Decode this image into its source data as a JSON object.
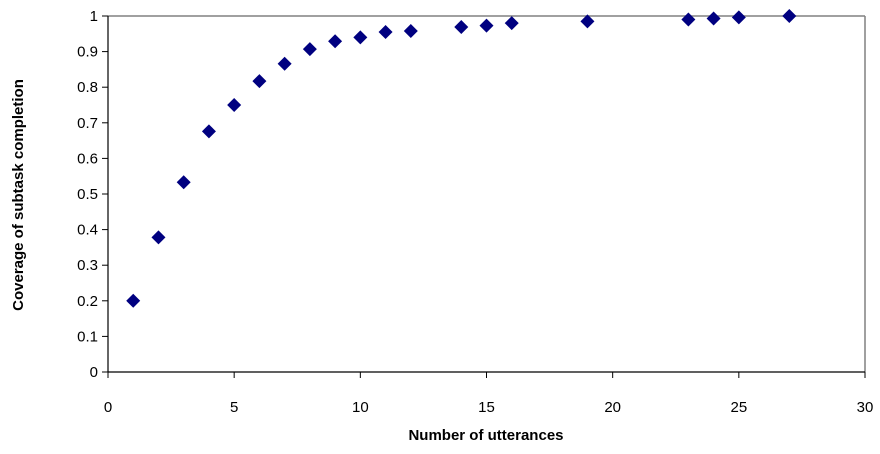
{
  "chart_data": {
    "type": "scatter",
    "title": "",
    "xlabel": "Number of utterances",
    "ylabel": "Coverage of subtask completion",
    "xlim": [
      0,
      30
    ],
    "ylim": [
      0,
      1
    ],
    "x_ticks": [
      0,
      5,
      10,
      15,
      20,
      25,
      30
    ],
    "y_ticks": [
      0,
      0.1,
      0.2,
      0.3,
      0.4,
      0.5,
      0.6,
      0.7,
      0.8,
      0.9,
      1
    ],
    "x_tick_labels": [
      "0",
      "5",
      "10",
      "15",
      "20",
      "25",
      "30"
    ],
    "y_tick_labels": [
      "0",
      "0.1",
      "0.2",
      "0.3",
      "0.4",
      "0.5",
      "0.6",
      "0.7",
      "0.8",
      "0.9",
      "1"
    ],
    "grid": false,
    "legend": "none",
    "marker": "diamond",
    "series": [
      {
        "x": [
          1,
          2,
          3,
          4,
          5,
          6,
          7,
          8,
          9,
          10,
          11,
          12,
          14,
          15,
          16,
          19,
          23,
          24,
          25,
          27
        ],
        "y": [
          0.2,
          0.378,
          0.533,
          0.676,
          0.75,
          0.817,
          0.866,
          0.907,
          0.929,
          0.94,
          0.955,
          0.958,
          0.969,
          0.973,
          0.98,
          0.985,
          0.99,
          0.993,
          0.996,
          1.0
        ]
      }
    ],
    "colors": {
      "marker": "#000080",
      "frame": "#808080",
      "axis": "#000000"
    }
  }
}
